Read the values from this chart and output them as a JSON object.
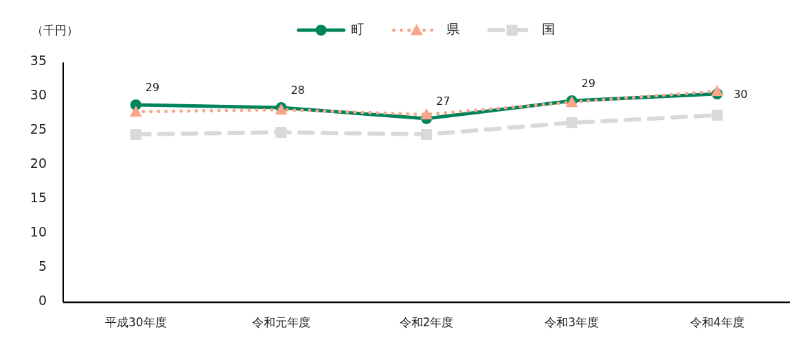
{
  "chart_data": {
    "type": "line",
    "ylabel": "（千円）",
    "categories": [
      "平成30年度",
      "令和元年度",
      "令和2年度",
      "令和3年度",
      "令和4年度"
    ],
    "series": [
      {
        "name": "町",
        "color": "#00845a",
        "values": [
          28.8,
          28.4,
          26.8,
          29.4,
          30.4
        ],
        "marker": "circle",
        "line_style": "solid",
        "value_labels": [
          "29",
          "28",
          "27",
          "29",
          "30"
        ]
      },
      {
        "name": "県",
        "color": "#f8a58c",
        "values": [
          27.8,
          28.1,
          27.4,
          29.2,
          30.8
        ],
        "marker": "triangle",
        "line_style": "dotted"
      },
      {
        "name": "国",
        "color": "#d9d9d9",
        "values": [
          24.5,
          24.8,
          24.5,
          26.2,
          27.3
        ],
        "marker": "square",
        "line_style": "dashed"
      }
    ],
    "ylim": [
      0,
      35
    ],
    "yticks": [
      0,
      5,
      10,
      15,
      20,
      25,
      30,
      35
    ],
    "grid": false,
    "legend": "top"
  }
}
